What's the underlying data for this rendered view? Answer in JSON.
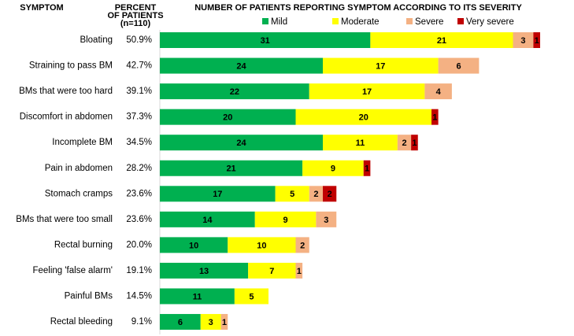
{
  "chart_data": {
    "type": "stacked-bar",
    "title": "NUMBER OF PATIENTS REPORTING SYMPTOM ACCORDING TO ITS SEVERITY",
    "category_header": "SYMPTOM",
    "percent_header": [
      "PERCENT",
      "OF PATIENTS",
      "(n=110)"
    ],
    "categories": [
      "Bloating",
      "Straining to pass BM",
      "BMs that were too hard",
      "Discomfort in abdomen",
      "Incomplete BM",
      "Pain in abdomen",
      "Stomach cramps",
      "BMs that were too small",
      "Rectal burning",
      "Feeling 'false alarm'",
      "Painful BMs",
      "Rectal bleeding"
    ],
    "percent_column": [
      "50.9%",
      "42.7%",
      "39.1%",
      "37.3%",
      "34.5%",
      "28.2%",
      "23.6%",
      "23.6%",
      "20.0%",
      "19.1%",
      "14.5%",
      "9.1%"
    ],
    "series": [
      {
        "name": "Mild",
        "color": "#00b050",
        "values": [
          31,
          24,
          22,
          20,
          24,
          21,
          17,
          14,
          10,
          13,
          11,
          6
        ]
      },
      {
        "name": "Moderate",
        "color": "#ffff00",
        "values": [
          21,
          17,
          17,
          20,
          11,
          9,
          5,
          9,
          10,
          7,
          5,
          3
        ]
      },
      {
        "name": "Severe",
        "color": "#f4b183",
        "values": [
          3,
          6,
          4,
          null,
          2,
          null,
          2,
          3,
          2,
          1,
          null,
          1
        ]
      },
      {
        "name": "Very severe",
        "color": "#c00000",
        "values": [
          1,
          null,
          null,
          1,
          1,
          1,
          2,
          null,
          null,
          null,
          null,
          null
        ]
      }
    ]
  }
}
